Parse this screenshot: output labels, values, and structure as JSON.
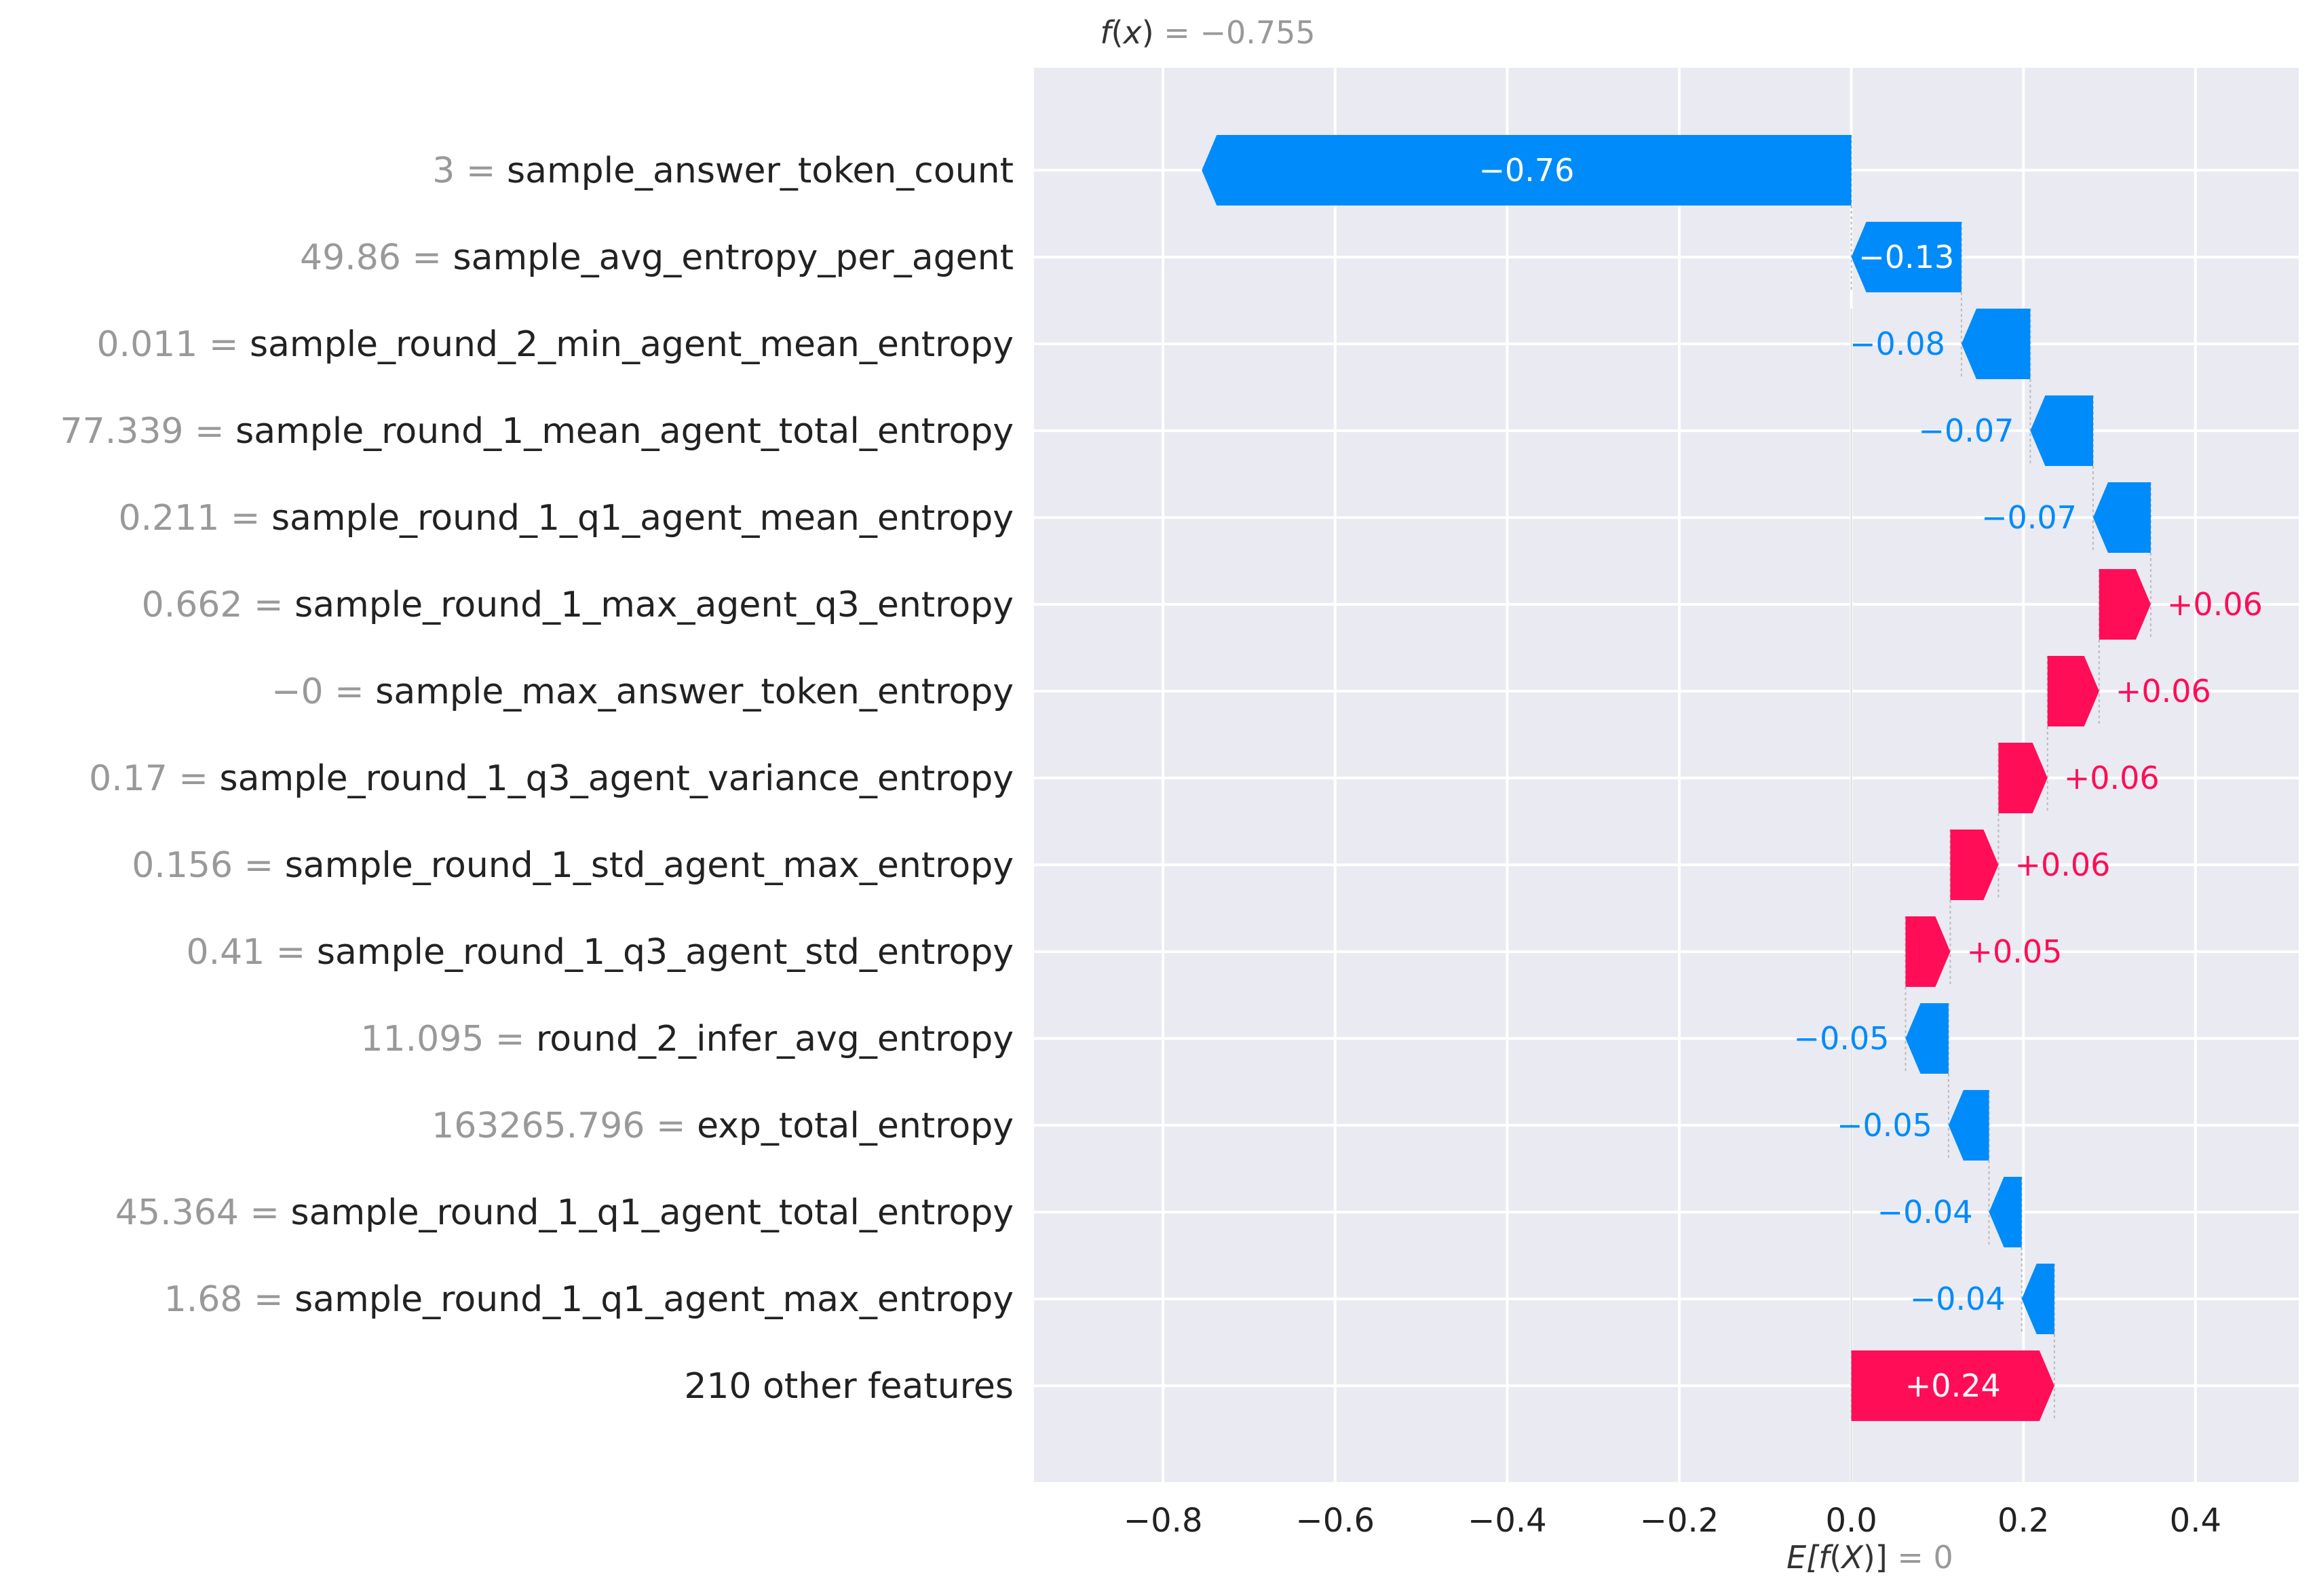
{
  "chart_data": {
    "type": "waterfall",
    "title": "f(x) = −0.755",
    "title_parts": {
      "func": "f",
      "arg": "x",
      "value": "= −0.755"
    },
    "fx": -0.755,
    "base_value": 0,
    "base_label_parts": {
      "prefix": "E[",
      "func": "f",
      "arg": "X",
      "suffix": ")]",
      "value": "= 0"
    },
    "xlim": [
      -0.95,
      0.52
    ],
    "xticks": [
      -0.8,
      -0.6,
      -0.4,
      -0.2,
      0.0,
      0.2,
      0.4
    ],
    "xtick_labels": [
      "−0.8",
      "−0.6",
      "−0.4",
      "−0.2",
      "0.0",
      "0.2",
      "0.4"
    ],
    "features": [
      {
        "value_text": "3",
        "name": "sample_answer_token_count",
        "start": 0.0,
        "end": -0.755,
        "label": "−0.76",
        "label_inside": true
      },
      {
        "value_text": "49.86",
        "name": "sample_avg_entropy_per_agent",
        "start": 0.128,
        "end": 0.0,
        "label": "−0.13",
        "label_inside": true
      },
      {
        "value_text": "0.011",
        "name": "sample_round_2_min_agent_mean_entropy",
        "start": 0.208,
        "end": 0.128,
        "label": "−0.08",
        "label_inside": false
      },
      {
        "value_text": "77.339",
        "name": "sample_round_1_mean_agent_total_entropy",
        "start": 0.281,
        "end": 0.208,
        "label": "−0.07",
        "label_inside": false
      },
      {
        "value_text": "0.211",
        "name": "sample_round_1_q1_agent_mean_entropy",
        "start": 0.348,
        "end": 0.281,
        "label": "−0.07",
        "label_inside": false
      },
      {
        "value_text": "0.662",
        "name": "sample_round_1_max_agent_q3_entropy",
        "start": 0.288,
        "end": 0.348,
        "label": "+0.06",
        "label_inside": false
      },
      {
        "value_text": "−0",
        "name": "sample_max_answer_token_entropy",
        "start": 0.228,
        "end": 0.288,
        "label": "+0.06",
        "label_inside": false
      },
      {
        "value_text": "0.17",
        "name": "sample_round_1_q3_agent_variance_entropy",
        "start": 0.171,
        "end": 0.228,
        "label": "+0.06",
        "label_inside": false
      },
      {
        "value_text": "0.156",
        "name": "sample_round_1_std_agent_max_entropy",
        "start": 0.115,
        "end": 0.171,
        "label": "+0.06",
        "label_inside": false
      },
      {
        "value_text": "0.41",
        "name": "sample_round_1_q3_agent_std_entropy",
        "start": 0.063,
        "end": 0.115,
        "label": "+0.05",
        "label_inside": false
      },
      {
        "value_text": "11.095",
        "name": "round_2_infer_avg_entropy",
        "start": 0.113,
        "end": 0.063,
        "label": "−0.05",
        "label_inside": false
      },
      {
        "value_text": "163265.796",
        "name": "exp_total_entropy",
        "start": 0.16,
        "end": 0.113,
        "label": "−0.05",
        "label_inside": false
      },
      {
        "value_text": "45.364",
        "name": "sample_round_1_q1_agent_total_entropy",
        "start": 0.198,
        "end": 0.16,
        "label": "−0.04",
        "label_inside": false
      },
      {
        "value_text": "1.68",
        "name": "sample_round_1_q1_agent_max_entropy",
        "start": 0.236,
        "end": 0.198,
        "label": "−0.04",
        "label_inside": false
      },
      {
        "value_text": "",
        "name": "210 other features",
        "start": 0.0,
        "end": 0.236,
        "label": "+0.24",
        "label_inside": true
      }
    ],
    "colors": {
      "positive": "#ff0d57",
      "negative": "#008bfb",
      "background": "#eaeaf2",
      "grid": "#ffffff",
      "feature_text": "#222222",
      "value_text": "#999999",
      "connector": "#bbbbbb"
    }
  }
}
